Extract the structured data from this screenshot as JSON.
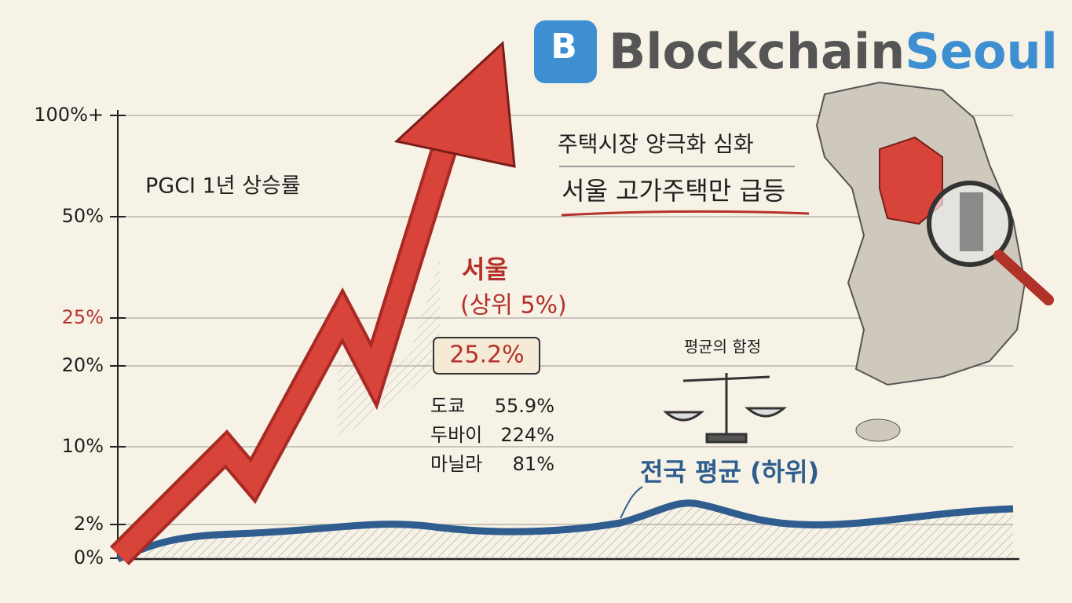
{
  "brand": {
    "icon": "B",
    "part1": "Blockchain",
    "part2": "Seoul"
  },
  "axis": {
    "labels": [
      "100%+",
      "50%",
      "25%",
      "20%",
      "10%",
      "2%",
      "0%"
    ]
  },
  "chart_title": "PGCI 1년 상승률",
  "seoul": {
    "name": "서울",
    "group": "(상위 5%)",
    "value": "25.2%"
  },
  "comparisons": [
    {
      "city": "도쿄",
      "value": "55.9%"
    },
    {
      "city": "두바이",
      "value": "224%"
    },
    {
      "city": "마닐라",
      "value": "81%"
    }
  ],
  "headline": {
    "line1": "주택시장 양극화 심화",
    "line2": "서울 고가주택만 급등"
  },
  "trap_label": "평균의 함정",
  "national": "전국 평균 (하위)"
}
